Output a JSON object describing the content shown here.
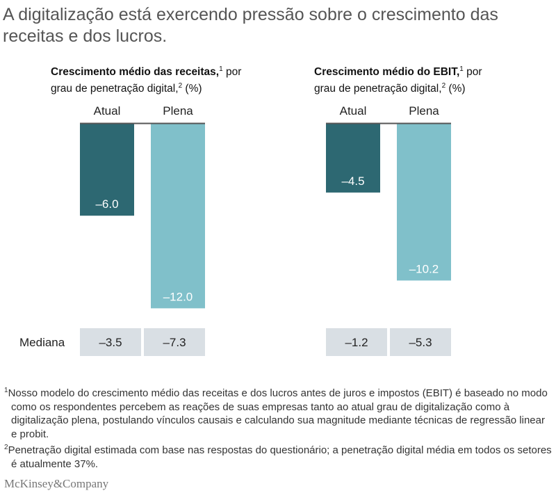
{
  "title": "A digitalização está exercendo pressão sobre o crescimento das receitas e dos lucros.",
  "colors": {
    "atual": "#2d6872",
    "plena": "#80c0ca",
    "median_bg": "#d9dfe4",
    "baseline": "#555555"
  },
  "chart_data": [
    {
      "type": "bar",
      "title_bold": "Crescimento médio das receitas,",
      "sup1": "1",
      "title_rest": " por",
      "title_line2": "grau de penetração digital,",
      "sup2": "2",
      "title_end": " (%)",
      "categories": [
        "Atual",
        "Plena"
      ],
      "values": [
        -6.0,
        -12.0
      ],
      "value_labels": [
        "–6.0",
        "–12.0"
      ],
      "median_label": "Mediana",
      "medians": [
        "–3.5",
        "–7.3"
      ]
    },
    {
      "type": "bar",
      "title_bold": "Crescimento médio do EBIT,",
      "sup1": "1",
      "title_rest": " por",
      "title_line2": "grau de penetração digital,",
      "sup2": "2",
      "title_end": " (%)",
      "categories": [
        "Atual",
        "Plena"
      ],
      "values": [
        -4.5,
        -10.2
      ],
      "value_labels": [
        "–4.5",
        "–10.2"
      ],
      "medians": [
        "–1.2",
        "–5.3"
      ]
    }
  ],
  "footnotes": [
    {
      "mark": "1",
      "text": "Nosso modelo do crescimento médio das receitas e dos lucros antes de juros e impostos (EBIT) é baseado no modo como os respondentes percebem as reações de suas empresas tanto ao atual grau de digitalização como à digitalização plena, postulando vínculos causais e calculando sua magnitude mediante técnicas de regressão linear e probit."
    },
    {
      "mark": "2",
      "text": "Penetração digital estimada com base nas respostas do questionário; a penetração digital média em todos os setores é atualmente 37%."
    }
  ],
  "logo": "McKinsey&Company"
}
